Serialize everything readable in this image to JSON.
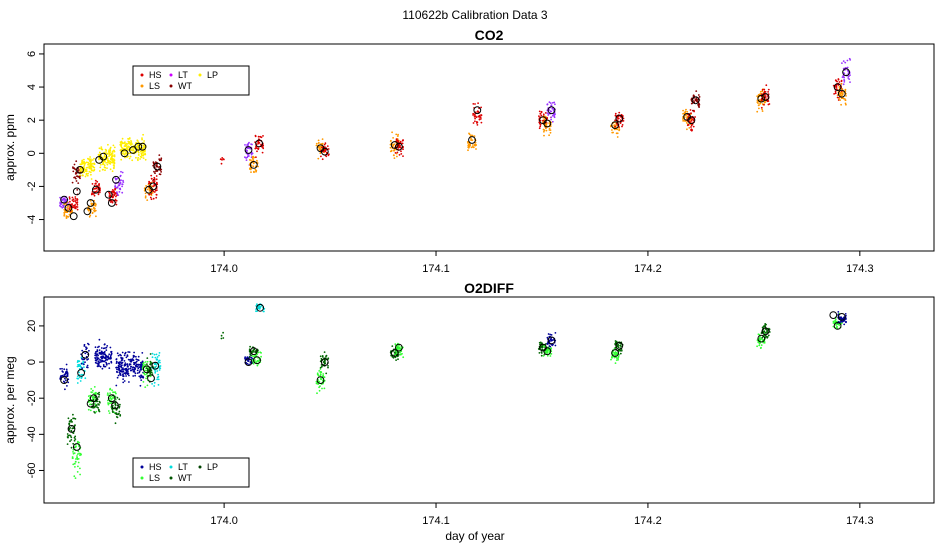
{
  "page": {
    "title": "110622b   Calibration Data 3",
    "xlabel": "day of year"
  },
  "chart_data": [
    {
      "type": "scatter",
      "title": "CO2",
      "ylabel": "approx. ppm",
      "xlabel": "",
      "xlim": [
        173.915,
        174.335
      ],
      "ylim": [
        -5.9,
        6.6
      ],
      "xticks": [
        174.0,
        174.1,
        174.2,
        174.3
      ],
      "xtick_labels": [
        "174.0",
        "174.1",
        "174.2",
        "174.3"
      ],
      "yticks": [
        -4,
        -2,
        0,
        2,
        4,
        6
      ],
      "ytick_labels": [
        "-4",
        "-2",
        "0",
        "2",
        "4",
        "6"
      ],
      "grid": false,
      "legend": {
        "placement": "top-left",
        "entries": [
          {
            "label": "HS",
            "color": "#dd0000"
          },
          {
            "label": "LT",
            "color": "#cc00ff"
          },
          {
            "label": "LP",
            "color": "#ffee00"
          },
          {
            "label": "LS",
            "color": "#ff9900"
          },
          {
            "label": "WT",
            "color": "#880000"
          }
        ]
      },
      "clusters": [
        {
          "x": 173.9245,
          "y": -3.0,
          "spread": 1.0,
          "width": 0.002,
          "color": "#9933ff",
          "n": 45
        },
        {
          "x": 173.9265,
          "y": -3.5,
          "spread": 1.0,
          "width": 0.002,
          "color": "#ff9900",
          "n": 40
        },
        {
          "x": 173.929,
          "y": -3.0,
          "spread": 1.0,
          "width": 0.002,
          "color": "#dd0000",
          "n": 40
        },
        {
          "x": 173.9305,
          "y": -1.2,
          "spread": 1.4,
          "width": 0.002,
          "color": "#880000",
          "n": 40
        },
        {
          "x": 173.9355,
          "y": -0.8,
          "spread": 1.3,
          "width": 0.0035,
          "color": "#ffee00",
          "n": 110
        },
        {
          "x": 173.9375,
          "y": -3.3,
          "spread": 1.2,
          "width": 0.002,
          "color": "#ff9900",
          "n": 40
        },
        {
          "x": 173.9395,
          "y": -2.2,
          "spread": 1.0,
          "width": 0.002,
          "color": "#dd0000",
          "n": 40
        },
        {
          "x": 173.9445,
          "y": -0.3,
          "spread": 1.5,
          "width": 0.004,
          "color": "#ffee00",
          "n": 140
        },
        {
          "x": 173.9475,
          "y": -2.6,
          "spread": 1.3,
          "width": 0.002,
          "color": "#dd0000",
          "n": 40
        },
        {
          "x": 173.9505,
          "y": -1.8,
          "spread": 1.2,
          "width": 0.002,
          "color": "#9933ff",
          "n": 40
        },
        {
          "x": 173.957,
          "y": 0.3,
          "spread": 1.3,
          "width": 0.006,
          "color": "#ffee00",
          "n": 200
        },
        {
          "x": 173.9645,
          "y": -2.1,
          "spread": 1.2,
          "width": 0.002,
          "color": "#ff9900",
          "n": 40
        },
        {
          "x": 173.9665,
          "y": -2.0,
          "spread": 1.5,
          "width": 0.002,
          "color": "#dd0000",
          "n": 45
        },
        {
          "x": 173.9685,
          "y": -0.8,
          "spread": 1.3,
          "width": 0.002,
          "color": "#880000",
          "n": 40
        },
        {
          "x": 173.999,
          "y": -0.4,
          "spread": 0.8,
          "width": 0.001,
          "color": "#dd0000",
          "n": 6
        },
        {
          "x": 174.0115,
          "y": 0.2,
          "spread": 1.2,
          "width": 0.002,
          "color": "#9933ff",
          "n": 40
        },
        {
          "x": 174.014,
          "y": -0.6,
          "spread": 1.1,
          "width": 0.002,
          "color": "#ff9900",
          "n": 40
        },
        {
          "x": 174.0165,
          "y": 0.6,
          "spread": 1.3,
          "width": 0.002,
          "color": "#dd0000",
          "n": 40
        },
        {
          "x": 174.0455,
          "y": 0.3,
          "spread": 1.0,
          "width": 0.002,
          "color": "#ff9900",
          "n": 40
        },
        {
          "x": 174.0475,
          "y": 0.1,
          "spread": 1.0,
          "width": 0.002,
          "color": "#dd0000",
          "n": 30
        },
        {
          "x": 174.0805,
          "y": 0.5,
          "spread": 1.3,
          "width": 0.002,
          "color": "#ff9900",
          "n": 45
        },
        {
          "x": 174.0825,
          "y": 0.4,
          "spread": 1.3,
          "width": 0.002,
          "color": "#dd0000",
          "n": 40
        },
        {
          "x": 174.117,
          "y": 0.7,
          "spread": 1.3,
          "width": 0.002,
          "color": "#ff9900",
          "n": 40
        },
        {
          "x": 174.1195,
          "y": 2.3,
          "spread": 1.3,
          "width": 0.002,
          "color": "#dd0000",
          "n": 40
        },
        {
          "x": 174.1505,
          "y": 2.0,
          "spread": 1.2,
          "width": 0.002,
          "color": "#dd0000",
          "n": 40
        },
        {
          "x": 174.1525,
          "y": 1.7,
          "spread": 1.2,
          "width": 0.002,
          "color": "#ff9900",
          "n": 40
        },
        {
          "x": 174.1545,
          "y": 2.6,
          "spread": 1.3,
          "width": 0.002,
          "color": "#9933ff",
          "n": 40
        },
        {
          "x": 174.1845,
          "y": 1.6,
          "spread": 1.0,
          "width": 0.002,
          "color": "#ff9900",
          "n": 40
        },
        {
          "x": 174.1865,
          "y": 2.1,
          "spread": 1.0,
          "width": 0.002,
          "color": "#dd0000",
          "n": 40
        },
        {
          "x": 174.2185,
          "y": 2.1,
          "spread": 1.2,
          "width": 0.002,
          "color": "#ff9900",
          "n": 40
        },
        {
          "x": 174.2205,
          "y": 2.0,
          "spread": 1.2,
          "width": 0.002,
          "color": "#dd0000",
          "n": 40
        },
        {
          "x": 174.2225,
          "y": 3.2,
          "spread": 1.2,
          "width": 0.002,
          "color": "#880000",
          "n": 40
        },
        {
          "x": 174.2535,
          "y": 3.3,
          "spread": 1.3,
          "width": 0.002,
          "color": "#ff9900",
          "n": 45
        },
        {
          "x": 174.2555,
          "y": 3.4,
          "spread": 1.3,
          "width": 0.002,
          "color": "#dd0000",
          "n": 40
        },
        {
          "x": 174.2895,
          "y": 4.0,
          "spread": 1.3,
          "width": 0.002,
          "color": "#dd0000",
          "n": 40
        },
        {
          "x": 174.2915,
          "y": 3.6,
          "spread": 1.3,
          "width": 0.002,
          "color": "#ff9900",
          "n": 40
        },
        {
          "x": 174.2935,
          "y": 4.9,
          "spread": 1.3,
          "width": 0.002,
          "color": "#9933ff",
          "n": 40
        }
      ],
      "means": [
        {
          "x": 173.9245,
          "y": -2.8
        },
        {
          "x": 173.9265,
          "y": -3.3
        },
        {
          "x": 173.929,
          "y": -3.8
        },
        {
          "x": 173.9305,
          "y": -2.3
        },
        {
          "x": 173.932,
          "y": -1.0
        },
        {
          "x": 173.9355,
          "y": -3.5
        },
        {
          "x": 173.937,
          "y": -3.0
        },
        {
          "x": 173.9395,
          "y": -2.2
        },
        {
          "x": 173.941,
          "y": -0.4
        },
        {
          "x": 173.943,
          "y": -0.2
        },
        {
          "x": 173.9455,
          "y": -2.5
        },
        {
          "x": 173.947,
          "y": -3.0
        },
        {
          "x": 173.949,
          "y": -1.6
        },
        {
          "x": 173.953,
          "y": 0.0
        },
        {
          "x": 173.957,
          "y": 0.2
        },
        {
          "x": 173.9595,
          "y": 0.4
        },
        {
          "x": 173.9615,
          "y": 0.4
        },
        {
          "x": 173.9645,
          "y": -2.2
        },
        {
          "x": 173.9665,
          "y": -2.0
        },
        {
          "x": 173.9685,
          "y": -0.8
        },
        {
          "x": 174.0115,
          "y": 0.2
        },
        {
          "x": 174.014,
          "y": -0.7
        },
        {
          "x": 174.0165,
          "y": 0.6
        },
        {
          "x": 174.0455,
          "y": 0.3
        },
        {
          "x": 174.0475,
          "y": 0.1
        },
        {
          "x": 174.0805,
          "y": 0.5
        },
        {
          "x": 174.0825,
          "y": 0.4
        },
        {
          "x": 174.117,
          "y": 0.8
        },
        {
          "x": 174.1195,
          "y": 2.6
        },
        {
          "x": 174.1505,
          "y": 2.0
        },
        {
          "x": 174.1525,
          "y": 1.8
        },
        {
          "x": 174.1545,
          "y": 2.6
        },
        {
          "x": 174.1845,
          "y": 1.7
        },
        {
          "x": 174.1865,
          "y": 2.1
        },
        {
          "x": 174.2185,
          "y": 2.2
        },
        {
          "x": 174.2205,
          "y": 2.0
        },
        {
          "x": 174.2225,
          "y": 3.2
        },
        {
          "x": 174.2535,
          "y": 3.3
        },
        {
          "x": 174.2555,
          "y": 3.4
        },
        {
          "x": 174.2895,
          "y": 4.0
        },
        {
          "x": 174.2915,
          "y": 3.6
        },
        {
          "x": 174.2935,
          "y": 4.9
        }
      ]
    },
    {
      "type": "scatter",
      "title": "O2DIFF",
      "ylabel": "approx. per meg",
      "xlabel": "day of year",
      "xlim": [
        173.915,
        174.335
      ],
      "ylim": [
        -78,
        36
      ],
      "xticks": [
        174.0,
        174.1,
        174.2,
        174.3
      ],
      "xtick_labels": [
        "174.0",
        "174.1",
        "174.2",
        "174.3"
      ],
      "yticks": [
        -60,
        -40,
        -20,
        0,
        20
      ],
      "ytick_labels": [
        "-60",
        "-40",
        "-20",
        "0",
        "20"
      ],
      "grid": false,
      "legend": {
        "placement": "bottom-left",
        "entries": [
          {
            "label": "HS",
            "color": "#000099"
          },
          {
            "label": "LT",
            "color": "#00dddd"
          },
          {
            "label": "LP",
            "color": "#004400"
          },
          {
            "label": "LS",
            "color": "#33ff33"
          },
          {
            "label": "WT",
            "color": "#005500"
          }
        ]
      },
      "clusters": [
        {
          "x": 173.9245,
          "y": -8,
          "spread": 14,
          "width": 0.002,
          "color": "#000099",
          "n": 40
        },
        {
          "x": 173.928,
          "y": -38,
          "spread": 18,
          "width": 0.002,
          "color": "#006600",
          "n": 45
        },
        {
          "x": 173.9305,
          "y": -52,
          "spread": 22,
          "width": 0.002,
          "color": "#33ff33",
          "n": 45
        },
        {
          "x": 173.9325,
          "y": -4,
          "spread": 16,
          "width": 0.002,
          "color": "#00dddd",
          "n": 40
        },
        {
          "x": 173.9345,
          "y": 4,
          "spread": 14,
          "width": 0.002,
          "color": "#000099",
          "n": 30
        },
        {
          "x": 173.938,
          "y": -21,
          "spread": 12,
          "width": 0.002,
          "color": "#33ff33",
          "n": 40
        },
        {
          "x": 173.9395,
          "y": -22,
          "spread": 12,
          "width": 0.002,
          "color": "#006600",
          "n": 40
        },
        {
          "x": 173.943,
          "y": 3,
          "spread": 14,
          "width": 0.004,
          "color": "#000099",
          "n": 130
        },
        {
          "x": 173.947,
          "y": -21,
          "spread": 14,
          "width": 0.002,
          "color": "#33ff33",
          "n": 40
        },
        {
          "x": 173.949,
          "y": -25,
          "spread": 14,
          "width": 0.002,
          "color": "#006600",
          "n": 40
        },
        {
          "x": 173.9555,
          "y": -2,
          "spread": 16,
          "width": 0.0065,
          "color": "#000099",
          "n": 220
        },
        {
          "x": 173.9635,
          "y": -5,
          "spread": 14,
          "width": 0.002,
          "color": "#33ff33",
          "n": 40
        },
        {
          "x": 173.9655,
          "y": -5,
          "spread": 14,
          "width": 0.002,
          "color": "#006600",
          "n": 40
        },
        {
          "x": 173.968,
          "y": -3,
          "spread": 18,
          "width": 0.002,
          "color": "#00dddd",
          "n": 45
        },
        {
          "x": 173.9995,
          "y": 14,
          "spread": 3,
          "width": 0.001,
          "color": "#006600",
          "n": 4
        },
        {
          "x": 174.0115,
          "y": 1,
          "spread": 6,
          "width": 0.002,
          "color": "#000099",
          "n": 30
        },
        {
          "x": 174.014,
          "y": 6,
          "spread": 6,
          "width": 0.002,
          "color": "#006600",
          "n": 35
        },
        {
          "x": 174.0155,
          "y": 2,
          "spread": 7,
          "width": 0.002,
          "color": "#33ff33",
          "n": 35
        },
        {
          "x": 174.017,
          "y": 30,
          "spread": 6,
          "width": 0.002,
          "color": "#00dddd",
          "n": 30
        },
        {
          "x": 174.0455,
          "y": -10,
          "spread": 14,
          "width": 0.002,
          "color": "#33ff33",
          "n": 45
        },
        {
          "x": 174.0475,
          "y": 0,
          "spread": 10,
          "width": 0.002,
          "color": "#006600",
          "n": 40
        },
        {
          "x": 174.0805,
          "y": 5,
          "spread": 8,
          "width": 0.002,
          "color": "#006600",
          "n": 40
        },
        {
          "x": 174.0825,
          "y": 7,
          "spread": 8,
          "width": 0.002,
          "color": "#33ff33",
          "n": 45
        },
        {
          "x": 174.1505,
          "y": 8,
          "spread": 7,
          "width": 0.002,
          "color": "#006600",
          "n": 40
        },
        {
          "x": 174.1525,
          "y": 6,
          "spread": 7,
          "width": 0.002,
          "color": "#33ff33",
          "n": 40
        },
        {
          "x": 174.1545,
          "y": 12,
          "spread": 7,
          "width": 0.002,
          "color": "#000099",
          "n": 40
        },
        {
          "x": 174.1845,
          "y": 4,
          "spread": 8,
          "width": 0.002,
          "color": "#33ff33",
          "n": 40
        },
        {
          "x": 174.1865,
          "y": 9,
          "spread": 7,
          "width": 0.002,
          "color": "#006600",
          "n": 40
        },
        {
          "x": 174.2535,
          "y": 12,
          "spread": 8,
          "width": 0.002,
          "color": "#33ff33",
          "n": 40
        },
        {
          "x": 174.2555,
          "y": 17,
          "spread": 8,
          "width": 0.002,
          "color": "#006600",
          "n": 40
        },
        {
          "x": 174.2895,
          "y": 22,
          "spread": 8,
          "width": 0.002,
          "color": "#33ff33",
          "n": 40
        },
        {
          "x": 174.2915,
          "y": 24,
          "spread": 6,
          "width": 0.002,
          "color": "#000099",
          "n": 40
        }
      ],
      "means": [
        {
          "x": 173.9245,
          "y": -10
        },
        {
          "x": 173.928,
          "y": -37
        },
        {
          "x": 173.9305,
          "y": -47
        },
        {
          "x": 173.9325,
          "y": -6
        },
        {
          "x": 173.9345,
          "y": 4
        },
        {
          "x": 173.937,
          "y": -23
        },
        {
          "x": 173.9385,
          "y": -20
        },
        {
          "x": 173.947,
          "y": -20
        },
        {
          "x": 173.9485,
          "y": -24
        },
        {
          "x": 173.9635,
          "y": -4
        },
        {
          "x": 173.9655,
          "y": -9
        },
        {
          "x": 173.9675,
          "y": -2
        },
        {
          "x": 174.0115,
          "y": 0
        },
        {
          "x": 174.014,
          "y": 6
        },
        {
          "x": 174.0155,
          "y": 1
        },
        {
          "x": 174.017,
          "y": 30
        },
        {
          "x": 174.0455,
          "y": -10
        },
        {
          "x": 174.0475,
          "y": 0
        },
        {
          "x": 174.0805,
          "y": 5
        },
        {
          "x": 174.0825,
          "y": 8
        },
        {
          "x": 174.1505,
          "y": 8
        },
        {
          "x": 174.1525,
          "y": 6
        },
        {
          "x": 174.1545,
          "y": 12
        },
        {
          "x": 174.1845,
          "y": 5
        },
        {
          "x": 174.1865,
          "y": 9
        },
        {
          "x": 174.2535,
          "y": 13
        },
        {
          "x": 174.2555,
          "y": 17
        },
        {
          "x": 174.2875,
          "y": 26
        },
        {
          "x": 174.2895,
          "y": 20
        },
        {
          "x": 174.2915,
          "y": 25
        }
      ]
    }
  ]
}
